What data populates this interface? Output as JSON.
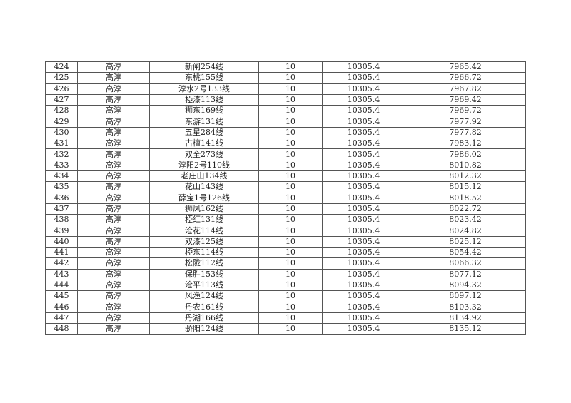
{
  "table": {
    "rows": [
      [
        "424",
        "高淳",
        "新闸254线",
        "10",
        "10305.4",
        "7965.42"
      ],
      [
        "425",
        "高淳",
        "东桃155线",
        "10",
        "10305.4",
        "7966.72"
      ],
      [
        "426",
        "高淳",
        "淳水2号133线",
        "10",
        "10305.4",
        "7967.82"
      ],
      [
        "427",
        "高淳",
        "椏漆113线",
        "10",
        "10305.4",
        "7969.42"
      ],
      [
        "428",
        "高淳",
        "狮东169线",
        "10",
        "10305.4",
        "7969.72"
      ],
      [
        "429",
        "高淳",
        "东游131线",
        "10",
        "10305.4",
        "7977.92"
      ],
      [
        "430",
        "高淳",
        "五星284线",
        "10",
        "10305.4",
        "7977.82"
      ],
      [
        "431",
        "高淳",
        "古檀141线",
        "10",
        "10305.4",
        "7983.12"
      ],
      [
        "432",
        "高淳",
        "双全273线",
        "10",
        "10305.4",
        "7986.02"
      ],
      [
        "433",
        "高淳",
        "淳阳2号110线",
        "10",
        "10305.4",
        "8010.82"
      ],
      [
        "434",
        "高淳",
        "老庄山134线",
        "10",
        "10305.4",
        "8012.32"
      ],
      [
        "435",
        "高淳",
        "花山143线",
        "10",
        "10305.4",
        "8015.12"
      ],
      [
        "436",
        "高淳",
        "薛宝1号126线",
        "10",
        "10305.4",
        "8018.52"
      ],
      [
        "437",
        "高淳",
        "狮凤162线",
        "10",
        "10305.4",
        "8022.72"
      ],
      [
        "438",
        "高淳",
        "椏红131线",
        "10",
        "10305.4",
        "8023.42"
      ],
      [
        "439",
        "高淳",
        "沧花114线",
        "10",
        "10305.4",
        "8024.82"
      ],
      [
        "440",
        "高淳",
        "双漆125线",
        "10",
        "10305.4",
        "8025.12"
      ],
      [
        "441",
        "高淳",
        "椏东114线",
        "10",
        "10305.4",
        "8054.42"
      ],
      [
        "442",
        "高淳",
        "松陇112线",
        "10",
        "10305.4",
        "8066.32"
      ],
      [
        "443",
        "高淳",
        "保胜153线",
        "10",
        "10305.4",
        "8077.12"
      ],
      [
        "444",
        "高淳",
        "沧平113线",
        "10",
        "10305.4",
        "8094.32"
      ],
      [
        "445",
        "高淳",
        "风渔124线",
        "10",
        "10305.4",
        "8097.12"
      ],
      [
        "446",
        "高淳",
        "丹农161线",
        "10",
        "10305.4",
        "8103.32"
      ],
      [
        "447",
        "高淳",
        "丹湖166线",
        "10",
        "10305.4",
        "8134.92"
      ],
      [
        "448",
        "高淳",
        "骄阳124线",
        "10",
        "10305.4",
        "8135.12"
      ]
    ]
  }
}
